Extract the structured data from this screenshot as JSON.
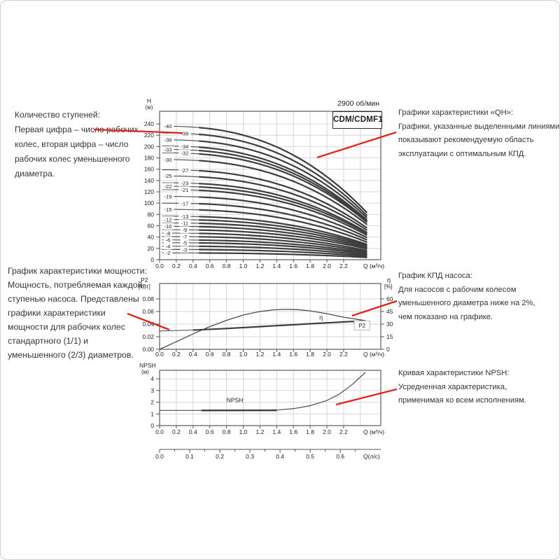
{
  "page": {
    "background": "#ffffff",
    "border_color": "#cfcfcf"
  },
  "colors": {
    "curve": "#4a4a4a",
    "curve_bold": "#3d3d3d",
    "grid": "#d6d6d6",
    "frame": "#5a5a5a",
    "tick": "#555555",
    "axis_text": "#222222",
    "red": "#e2231a",
    "annotation_text": "#353535"
  },
  "annotations": {
    "stages": {
      "lines": [
        "Количество ступеней:",
        "Первая цифра – число рабочих",
        "колес, вторая цифра – число",
        "рабочих колес уменьшенного",
        "диаметра."
      ]
    },
    "qh": {
      "lines": [
        "Графики характеристики «QH»:",
        "Графики, указанные выделенными линиями,",
        "показывают рекомендуемую область",
        "эксплуатации с оптимальным КПД."
      ]
    },
    "power": {
      "lines": [
        "График характеристики мощности:",
        "Мощность, потребляемая каждой",
        "ступенью насоса. Представлены",
        "графики характеристики",
        "мощности для рабочих колес",
        "стандартного (1/1) и",
        "уменьшенного (2/3) диаметров."
      ]
    },
    "efficiency": {
      "lines": [
        "График КПД насоса:",
        "Для насосов с рабочим колесом",
        "уменьшенного диаметра ниже на 2%,",
        "чем показано на графике."
      ]
    },
    "npsh": {
      "lines": [
        "Кривая характеристики NPSH:",
        "Усредненная характеристика,",
        "применимая ко всем исполнениям."
      ]
    }
  },
  "chart_data": [
    {
      "type": "line",
      "id": "qh",
      "title": "CDM/CDMF1",
      "rpm_note": "2900 об/мин",
      "xlabel": "Q (м³/ч)",
      "ylabel": "H",
      "ylabel_unit": "(м)",
      "x_ticks": [
        "0.0",
        "0.2",
        "0.4",
        "0.6",
        "0.8",
        "1.0",
        "1.2",
        "1.4",
        "1.6",
        "1.8",
        "2.0",
        "2.2"
      ],
      "y_ticks": [
        0,
        20,
        40,
        60,
        80,
        100,
        120,
        140,
        160,
        180,
        200,
        220,
        240
      ],
      "xlim": [
        0,
        2.64
      ],
      "ylim": [
        0,
        262
      ],
      "curve_start_x": 0.03,
      "curve_end_x": 2.48,
      "curves": [
        {
          "label": "-40",
          "col": "left",
          "h_start": 236,
          "h_end": 83
        },
        {
          "label": "-38",
          "col": "right",
          "h_start": 224,
          "h_end": 78
        },
        {
          "label": "-36",
          "col": "left",
          "h_start": 212,
          "h_end": 74
        },
        {
          "label": "-34",
          "col": "right",
          "h_start": 201,
          "h_end": 70
        },
        {
          "label": "-33",
          "col": "left",
          "h_start": 195,
          "h_end": 68
        },
        {
          "label": "-32",
          "col": "right",
          "h_start": 189,
          "h_end": 66
        },
        {
          "label": "-30",
          "col": "left",
          "h_start": 177,
          "h_end": 62
        },
        {
          "label": "-27",
          "col": "right",
          "h_start": 159,
          "h_end": 56
        },
        {
          "label": "-25",
          "col": "left",
          "h_start": 148,
          "h_end": 52
        },
        {
          "label": "-23",
          "col": "right",
          "h_start": 136,
          "h_end": 48
        },
        {
          "label": "-22",
          "col": "left",
          "h_start": 130,
          "h_end": 46
        },
        {
          "label": "-21",
          "col": "right",
          "h_start": 124,
          "h_end": 43
        },
        {
          "label": "-19",
          "col": "left",
          "h_start": 112,
          "h_end": 39
        },
        {
          "label": "-17",
          "col": "right",
          "h_start": 100,
          "h_end": 35
        },
        {
          "label": "-15",
          "col": "left",
          "h_start": 89,
          "h_end": 31
        },
        {
          "label": "-13",
          "col": "right",
          "h_start": 77,
          "h_end": 27
        },
        {
          "label": "-12",
          "col": "left",
          "h_start": 71,
          "h_end": 25
        },
        {
          "label": "-11",
          "col": "right",
          "h_start": 65,
          "h_end": 23
        },
        {
          "label": "-10",
          "col": "left",
          "h_start": 59,
          "h_end": 21
        },
        {
          "label": "-9",
          "col": "right",
          "h_start": 53,
          "h_end": 19
        },
        {
          "label": "-8",
          "col": "left",
          "h_start": 47,
          "h_end": 16
        },
        {
          "label": "-7",
          "col": "right",
          "h_start": 41,
          "h_end": 14
        },
        {
          "label": "-6",
          "col": "left",
          "h_start": 35,
          "h_end": 12
        },
        {
          "label": "-5",
          "col": "right",
          "h_start": 30,
          "h_end": 10
        },
        {
          "label": "-4",
          "col": "left",
          "h_start": 24,
          "h_end": 8
        },
        {
          "label": "-3",
          "col": "right",
          "h_start": 18,
          "h_end": 6
        },
        {
          "label": "-2",
          "col": "left",
          "h_start": 12,
          "h_end": 4
        }
      ]
    },
    {
      "type": "line",
      "id": "power_efficiency",
      "ylabel_left": "P2",
      "ylabel_left_unit": "[кВт]",
      "ylabel_right": "η",
      "ylabel_right_unit": "[%]",
      "xlabel": "Q (м³/ч)",
      "x_ticks": [
        "0.0",
        "0.2",
        "0.4",
        "0.6",
        "0.8",
        "1.0",
        "1.2",
        "1.4",
        "1.6",
        "1.8",
        "2.0",
        "2.2"
      ],
      "y_ticks_left": [
        "0.00",
        "0.02",
        "0.04",
        "0.06",
        "0.08"
      ],
      "y_ticks_right": [
        "0",
        "15",
        "30",
        "45",
        "60"
      ],
      "series": [
        {
          "name": "η",
          "label": "η",
          "label_pos": [
            1.93,
            0.0505
          ],
          "points": [
            [
              0,
              0
            ],
            [
              0.2,
              0.012
            ],
            [
              0.4,
              0.0245
            ],
            [
              0.6,
              0.036
            ],
            [
              0.8,
              0.046
            ],
            [
              1.0,
              0.0545
            ],
            [
              1.2,
              0.06
            ],
            [
              1.35,
              0.0625
            ],
            [
              1.5,
              0.0635
            ],
            [
              1.65,
              0.063
            ],
            [
              1.8,
              0.061
            ],
            [
              2.0,
              0.0565
            ],
            [
              2.2,
              0.051
            ],
            [
              2.46,
              0.0455
            ]
          ]
        },
        {
          "name": "P2",
          "label": "P2",
          "boxed_label_pos": [
            2.42,
            0.038
          ],
          "points": [
            [
              0,
              0.029
            ],
            [
              0.4,
              0.0305
            ],
            [
              0.8,
              0.033
            ],
            [
              1.2,
              0.036
            ],
            [
              1.6,
              0.039
            ],
            [
              2.0,
              0.042
            ],
            [
              2.2,
              0.0435
            ],
            [
              2.46,
              0.045
            ]
          ]
        }
      ]
    },
    {
      "type": "line",
      "id": "npsh",
      "ylabel": "NPSH",
      "ylabel_unit": "(м)",
      "xlabel": "Q (м³/ч)",
      "x_ticks": [
        "0.0",
        "0.2",
        "0.4",
        "0.6",
        "0.8",
        "1.0",
        "1.2",
        "1.4",
        "1.6",
        "1.8",
        "2.0",
        "2.2"
      ],
      "y_ticks": [
        0,
        1,
        2,
        3,
        4
      ],
      "series": [
        {
          "name": "NPSH",
          "label": "NPSH",
          "label_pos": [
            0.9,
            2.2
          ],
          "points": [
            [
              0,
              1.3
            ],
            [
              0.4,
              1.3
            ],
            [
              0.8,
              1.3
            ],
            [
              1.2,
              1.3
            ],
            [
              1.4,
              1.33
            ],
            [
              1.6,
              1.45
            ],
            [
              1.8,
              1.7
            ],
            [
              2.0,
              2.15
            ],
            [
              2.15,
              2.7
            ],
            [
              2.3,
              3.5
            ],
            [
              2.46,
              4.55
            ]
          ]
        }
      ],
      "secondary_axis": {
        "label": "Q(л/с)",
        "ticks": [
          "0.0",
          "0.1",
          "0.2",
          "0.3",
          "0.4",
          "0.5",
          "0.6"
        ],
        "m3h_per_unit": 3.6
      }
    }
  ]
}
